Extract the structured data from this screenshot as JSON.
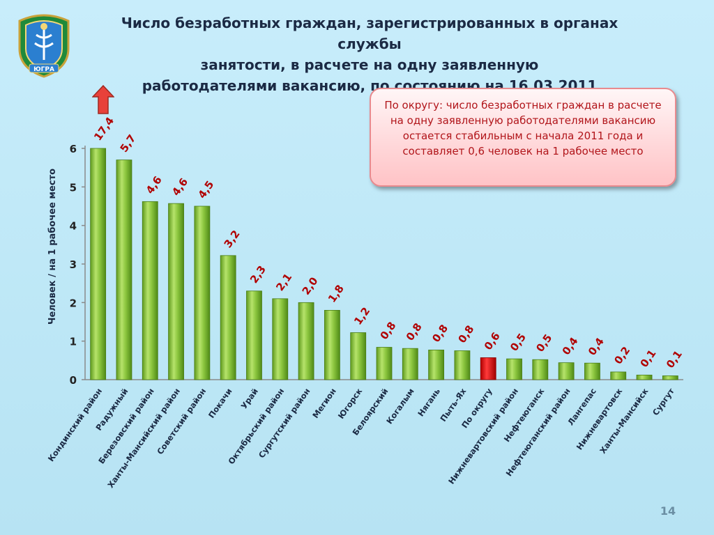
{
  "title": "Число безработных  граждан, зарегистрированных в органах службы\nзанятости, в расчете на одну заявленную\nработодателями вакансию, по состоянию на 16.03.2011",
  "note": "По округу: число безработных граждан в расчете на одну заявленную работодателями вакансию остается стабильным  с начала 2011 года и составляет 0,6 человек на 1 рабочее место",
  "page_number": "14",
  "emblem_text": "ЮГРА",
  "colors": {
    "bar": "#8cc63f",
    "bar_highlight": "#e01010",
    "value_label": "#b00000",
    "axis_text": "#222222",
    "arrow": "#e8413a"
  },
  "chart_data": {
    "type": "bar",
    "ylabel": "Человек / на 1 рабочее место",
    "ylim": [
      0,
      6
    ],
    "yticks": [
      "0",
      "1",
      "2",
      "3",
      "4",
      "5",
      "6"
    ],
    "categories": [
      "Кондинский район",
      "Радужный",
      "Березовский район",
      "Ханты-Мансийский район",
      "Советский район",
      "Покачи",
      "Урай",
      "Октябрьский район",
      "Сургутский район",
      "Мегион",
      "Югорск",
      "Белоярский",
      "Когалым",
      "Нягань",
      "Пыть-Ях",
      "По округу",
      "Нижневартовский район",
      "Нефтеюганск",
      "Нефтеюганский район",
      "Лангепас",
      "Нижневартовск",
      "Ханты-Мансийск",
      "Сургут"
    ],
    "values": [
      17.4,
      5.7,
      4.6,
      4.6,
      4.5,
      3.2,
      2.3,
      2.1,
      2.0,
      1.8,
      1.2,
      0.8,
      0.8,
      0.8,
      0.8,
      0.6,
      0.5,
      0.5,
      0.4,
      0.4,
      0.2,
      0.1,
      0.1
    ],
    "bar_display_values": [
      6.0,
      5.7,
      4.62,
      4.57,
      4.5,
      3.22,
      2.3,
      2.1,
      2.0,
      1.8,
      1.22,
      0.84,
      0.81,
      0.77,
      0.75,
      0.57,
      0.54,
      0.52,
      0.44,
      0.43,
      0.2,
      0.12,
      0.1
    ],
    "value_labels": [
      "17,4",
      "5,7",
      "4,6",
      "4,6",
      "4,5",
      "3,2",
      "2,3",
      "2,1",
      "2,0",
      "1,8",
      "1,2",
      "0,8",
      "0,8",
      "0,8",
      "0,8",
      "0,6",
      "0,5",
      "0,5",
      "0,4",
      "0,4",
      "0,2",
      "0,1",
      "0,1"
    ],
    "highlight_category": "По округу",
    "clipped_category": "Кондинский район",
    "grid": false
  }
}
